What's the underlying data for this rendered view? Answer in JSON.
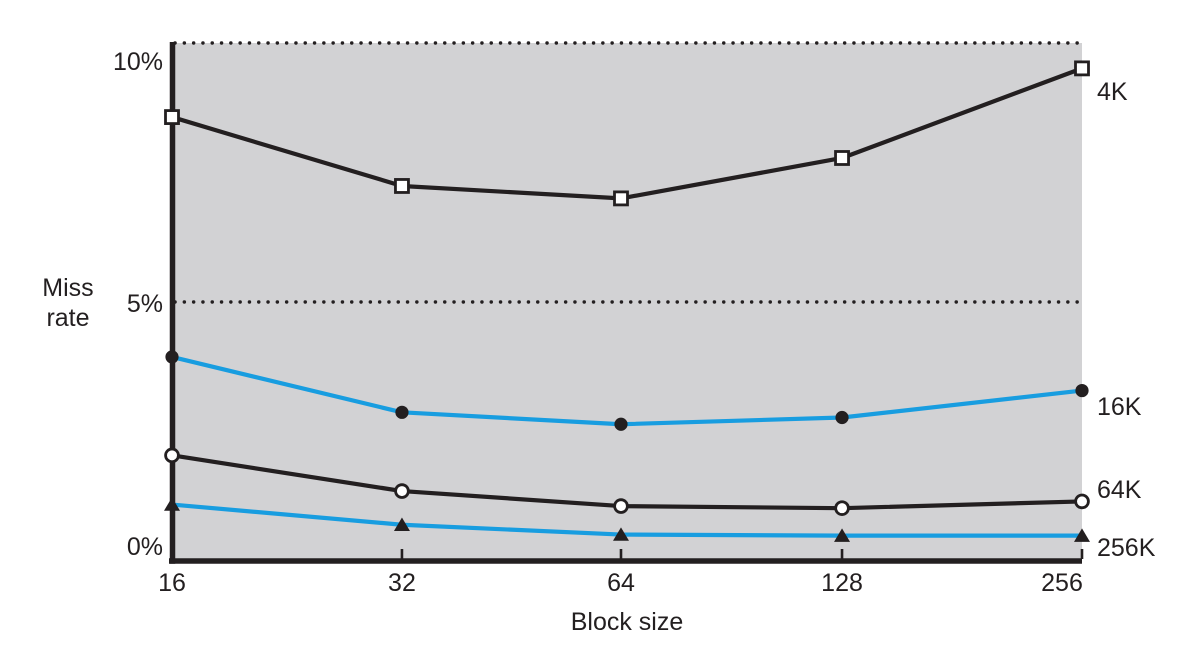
{
  "figure": {
    "y_axis_title_lines": [
      "Miss",
      "rate"
    ],
    "x_axis_title": "Block size"
  },
  "chart_data": {
    "type": "line",
    "title": "",
    "xlabel": "Block size",
    "ylabel": "Miss rate",
    "x_scale": "log2",
    "categories": [
      16,
      32,
      64,
      128,
      256
    ],
    "x_tick_labels": [
      "16",
      "32",
      "64",
      "128",
      "256"
    ],
    "y_ticks": [
      {
        "label": "10%",
        "value": 10
      },
      {
        "label": "5%",
        "value": 5
      },
      {
        "label": "0%",
        "value": 0
      }
    ],
    "ylim": [
      0,
      10
    ],
    "y_unit": "%",
    "grid": "dotted-horizontal",
    "gridline_values": [
      5,
      10
    ],
    "legend_position": "right-of-lines",
    "plot_background": "#d2d2d4",
    "line_color_black": "#231f20",
    "line_color_blue": "#189de0",
    "series": [
      {
        "name": "4K",
        "line_color": "#231f20",
        "marker": "open-square",
        "values": [
          8.57,
          7.24,
          7.0,
          7.78,
          9.51
        ]
      },
      {
        "name": "16K",
        "line_color": "#189de0",
        "marker": "filled-circle",
        "values": [
          3.94,
          2.87,
          2.64,
          2.77,
          3.29
        ]
      },
      {
        "name": "64K",
        "line_color": "#231f20",
        "marker": "open-circle",
        "values": [
          2.04,
          1.35,
          1.06,
          1.02,
          1.15
        ]
      },
      {
        "name": "256K",
        "line_color": "#189de0",
        "marker": "filled-triangle",
        "values": [
          1.09,
          0.7,
          0.51,
          0.49,
          0.49
        ]
      }
    ]
  }
}
